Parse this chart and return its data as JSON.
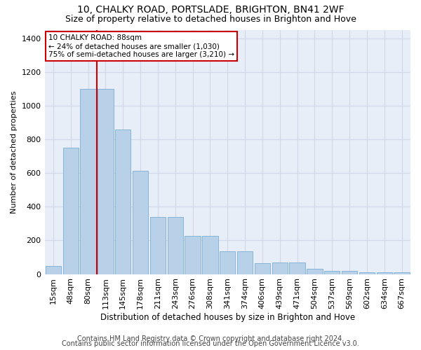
{
  "title1": "10, CHALKY ROAD, PORTSLADE, BRIGHTON, BN41 2WF",
  "title2": "Size of property relative to detached houses in Brighton and Hove",
  "xlabel": "Distribution of detached houses by size in Brighton and Hove",
  "ylabel": "Number of detached properties",
  "footer1": "Contains HM Land Registry data © Crown copyright and database right 2024.",
  "footer2": "Contains public sector information licensed under the Open Government Licence v3.0.",
  "annotation_title": "10 CHALKY ROAD: 88sqm",
  "annotation_line1": "← 24% of detached houses are smaller (1,030)",
  "annotation_line2": "75% of semi-detached houses are larger (3,210) →",
  "bar_labels": [
    "15sqm",
    "48sqm",
    "80sqm",
    "113sqm",
    "145sqm",
    "178sqm",
    "211sqm",
    "243sqm",
    "276sqm",
    "308sqm",
    "341sqm",
    "374sqm",
    "406sqm",
    "439sqm",
    "471sqm",
    "504sqm",
    "537sqm",
    "569sqm",
    "602sqm",
    "634sqm",
    "667sqm"
  ],
  "bar_values": [
    50,
    750,
    1100,
    1100,
    860,
    615,
    340,
    340,
    225,
    225,
    135,
    135,
    65,
    70,
    70,
    30,
    20,
    20,
    10,
    10,
    10
  ],
  "bar_color": "#b8d0e8",
  "bar_edge_color": "#7aadd4",
  "vline_color": "#cc0000",
  "vline_x": 2.5,
  "ylim": [
    0,
    1450
  ],
  "yticks": [
    0,
    200,
    400,
    600,
    800,
    1000,
    1200,
    1400
  ],
  "grid_color": "#d0d8e8",
  "bg_color": "#e8eef8",
  "annotation_box_color": "#ffffff",
  "annotation_box_edge": "#cc0000",
  "title_fontsize": 10,
  "subtitle_fontsize": 9,
  "footer_fontsize": 7
}
